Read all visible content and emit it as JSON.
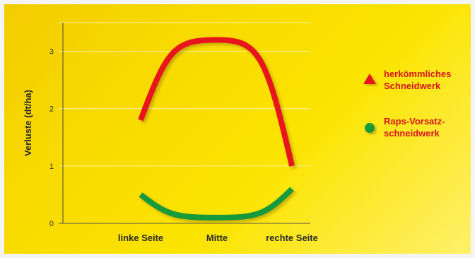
{
  "chart_data": {
    "type": "line",
    "categories": [
      "linke Seite",
      "Mitte",
      "rechte Seite"
    ],
    "ylabel": "Verluste (dt/ha)",
    "ylim": [
      0,
      3.5
    ],
    "yticks": [
      0,
      1,
      2,
      3
    ],
    "grid": true,
    "legend_position": "right",
    "series": [
      {
        "name": "herkömmliches Schneidwerk",
        "name_lines": [
          "herkömmliches",
          "Schneidwerk"
        ],
        "marker": "triangle",
        "color": "#e8141b",
        "values": [
          1.8,
          3.2,
          1.0
        ]
      },
      {
        "name": "Raps-Vorsatz-schneidwerk",
        "name_lines": [
          "Raps-Vorsatz-",
          "schneidwerk"
        ],
        "marker": "circle",
        "color": "#159a3a",
        "values": [
          0.5,
          0.1,
          0.6
        ]
      }
    ]
  }
}
